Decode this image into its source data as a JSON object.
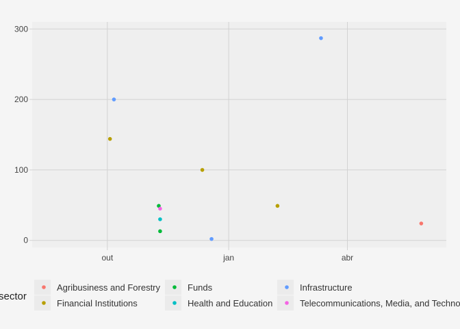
{
  "chart_data": {
    "type": "scatter",
    "x_scale": "date",
    "xlim": [
      "2013-08-05",
      "2014-06-15"
    ],
    "ylim": [
      -10,
      310
    ],
    "x_ticks": [
      {
        "value": "2013-10-01",
        "label": "out"
      },
      {
        "value": "2014-01-01",
        "label": "jan"
      },
      {
        "value": "2014-04-01",
        "label": "abr"
      }
    ],
    "y_ticks": [
      {
        "value": 0,
        "label": "0"
      },
      {
        "value": 100,
        "label": "100"
      },
      {
        "value": 200,
        "label": "200"
      },
      {
        "value": 300,
        "label": "300"
      }
    ],
    "grid": true,
    "legend": {
      "title": "sector",
      "position": "bottom",
      "entries": [
        {
          "label": "Agribusiness and Forestry",
          "color": "#F8766D"
        },
        {
          "label": "Financial Institutions",
          "color": "#B79F00"
        },
        {
          "label": "Funds",
          "color": "#00BA38"
        },
        {
          "label": "Health and Education",
          "color": "#00BFC4"
        },
        {
          "label": "Infrastructure",
          "color": "#619CFF"
        },
        {
          "label": "Telecommunications, Media, and Technology",
          "color": "#F564E3"
        }
      ]
    },
    "series": [
      {
        "name": "Agribusiness and Forestry",
        "points": [
          {
            "x": "2014-05-27",
            "y": 24
          }
        ]
      },
      {
        "name": "Financial Institutions",
        "points": [
          {
            "x": "2013-10-03",
            "y": 144
          },
          {
            "x": "2013-12-12",
            "y": 100
          },
          {
            "x": "2014-02-07",
            "y": 49
          }
        ]
      },
      {
        "name": "Funds",
        "points": [
          {
            "x": "2013-11-09",
            "y": 49
          },
          {
            "x": "2013-11-10",
            "y": 13
          }
        ]
      },
      {
        "name": "Health and Education",
        "points": [
          {
            "x": "2013-11-10",
            "y": 30
          }
        ]
      },
      {
        "name": "Infrastructure",
        "points": [
          {
            "x": "2013-10-06",
            "y": 200
          },
          {
            "x": "2013-12-19",
            "y": 2
          },
          {
            "x": "2014-03-12",
            "y": 287
          }
        ]
      },
      {
        "name": "Telecommunications, Media, and Technology",
        "points": [
          {
            "x": "2013-11-10",
            "y": 45
          }
        ]
      }
    ]
  }
}
